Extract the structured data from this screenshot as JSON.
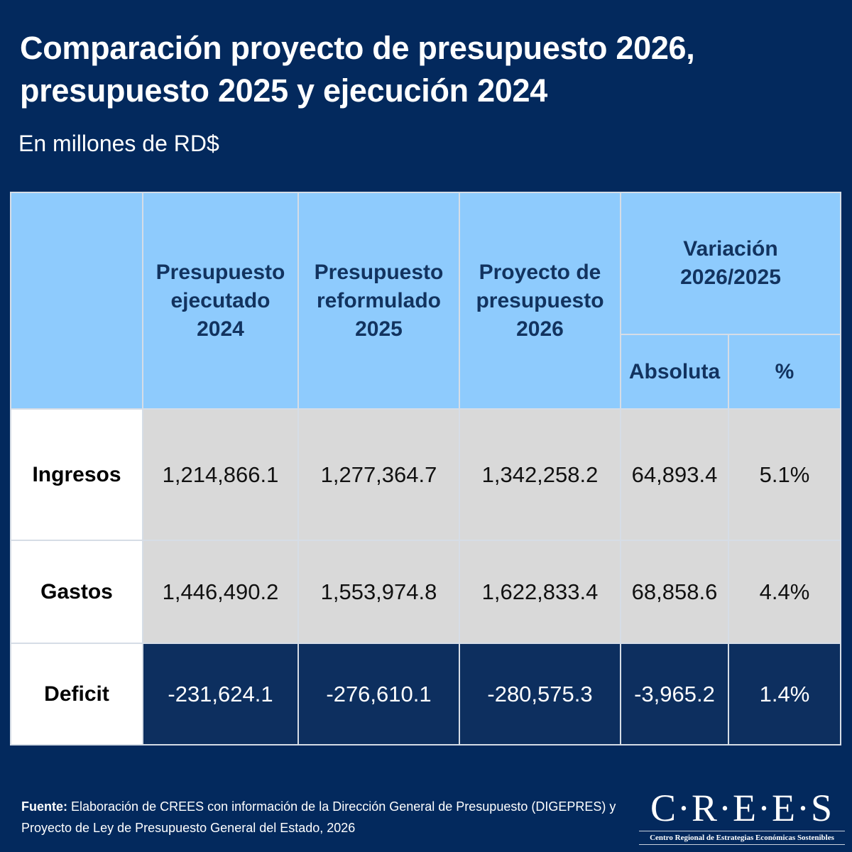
{
  "title_line1": "Comparación proyecto de presupuesto 2026,",
  "title_line2": "presupuesto 2025 y ejecución 2024",
  "subtitle": "En millones de RD$",
  "table": {
    "headers": [
      "Presupuesto ejecutado 2024",
      "Presupuesto reformulado 2025",
      "Proyecto de presupuesto 2026",
      "Variación 2026/2025"
    ],
    "subheaders": [
      "Absoluta",
      "%"
    ],
    "rows": [
      {
        "label": "Ingresos",
        "values": [
          "1,214,866.1",
          "1,277,364.7",
          "1,342,258.2",
          "64,893.4",
          "5.1%"
        ]
      },
      {
        "label": "Gastos",
        "values": [
          "1,446,490.2",
          "1,553,974.8",
          "1,622,833.4",
          "68,858.6",
          "4.4%"
        ]
      },
      {
        "label": "Deficit",
        "values": [
          "-231,624.1",
          "-276,610.1",
          "-280,575.3",
          "-3,965.2",
          "1.4%"
        ]
      }
    ]
  },
  "footer": {
    "label": "Fuente:",
    "text": " Elaboración de CREES con información de la Dirección General de Presupuesto (DIGEPRES) y Proyecto de Ley de Presupuesto General del Estado, 2026"
  },
  "logo": {
    "main": "C·R·E·E·S",
    "sub": "Centro Regional de Estrategias Económicas Sostenibles"
  }
}
